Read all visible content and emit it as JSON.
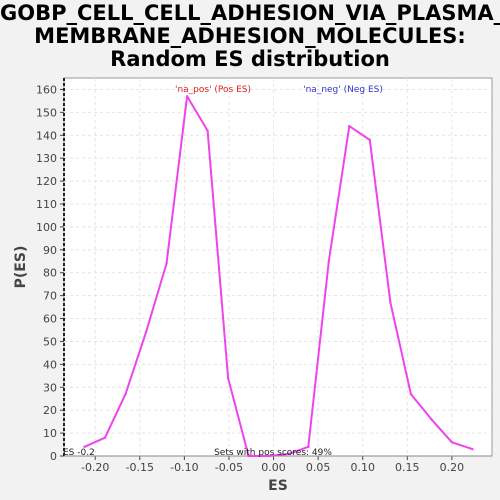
{
  "title_lines": [
    "GOBP_CELL_CELL_ADHESION_VIA_PLASMA_",
    "MEMBRANE_ADHESION_MOLECULES:",
    "Random ES distribution"
  ],
  "chart_data": {
    "type": "line",
    "xlabel": "ES",
    "ylabel": "P(ES)",
    "xlim": [
      -0.235,
      0.245
    ],
    "ylim": [
      0,
      165
    ],
    "x_ticks": [
      "-0.20",
      "-0.15",
      "-0.10",
      "-0.05",
      "0.00",
      "0.05",
      "0.10",
      "0.15",
      "0.20"
    ],
    "x_tick_values": [
      -0.2,
      -0.15,
      -0.1,
      -0.05,
      0.0,
      0.05,
      0.1,
      0.15,
      0.2
    ],
    "y_ticks": [
      0,
      10,
      20,
      30,
      40,
      50,
      60,
      70,
      80,
      90,
      100,
      110,
      120,
      130,
      140,
      150,
      160
    ],
    "grid": true,
    "legend": [
      {
        "label": "'na_pos' (Pos ES)",
        "color": "#dd2222"
      },
      {
        "label": "'na_neg' (Neg ES)",
        "color": "#3333cc"
      }
    ],
    "series": [
      {
        "color": "#ee44ee",
        "x": [
          -0.212,
          -0.189,
          -0.166,
          -0.143,
          -0.12,
          -0.097,
          -0.074,
          -0.051,
          -0.028,
          -0.005,
          0.018,
          0.039,
          0.062,
          0.085,
          0.108,
          0.131,
          0.154,
          0.177,
          0.2,
          0.223
        ],
        "y": [
          4,
          8,
          27,
          54,
          84,
          157,
          142,
          34,
          0,
          0,
          1,
          4,
          85,
          144,
          138,
          67,
          27,
          16,
          6,
          3
        ]
      }
    ],
    "annotations": {
      "es_marker": "ES -0.2",
      "pos_scores": "Sets with pos scores: 49%"
    }
  }
}
